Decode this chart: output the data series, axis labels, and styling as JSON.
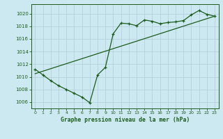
{
  "title": "Graphe pression niveau de la mer (hPa)",
  "background_color": "#cce8f0",
  "grid_color": "#b0ccd8",
  "line_color": "#1a5c1a",
  "xlim": [
    -0.5,
    23.5
  ],
  "ylim": [
    1005.0,
    1021.5
  ],
  "yticks": [
    1006,
    1008,
    1010,
    1012,
    1014,
    1016,
    1018,
    1020
  ],
  "xticks": [
    0,
    1,
    2,
    3,
    4,
    5,
    6,
    7,
    8,
    9,
    10,
    11,
    12,
    13,
    14,
    15,
    16,
    17,
    18,
    19,
    20,
    21,
    22,
    23
  ],
  "line1_x": [
    0,
    1,
    2,
    3,
    4,
    5,
    6,
    7,
    8,
    9,
    10,
    11,
    12,
    13,
    14,
    15,
    16,
    17,
    18,
    19,
    20,
    21,
    22,
    23
  ],
  "line1_y": [
    1011.2,
    1010.3,
    1009.4,
    1008.6,
    1008.0,
    1007.4,
    1006.8,
    1005.9,
    1010.3,
    1011.5,
    1016.8,
    1018.5,
    1018.4,
    1018.1,
    1019.0,
    1018.8,
    1018.4,
    1018.6,
    1018.7,
    1018.9,
    1019.8,
    1020.5,
    1019.9,
    1019.6
  ],
  "line2_x": [
    0,
    23
  ],
  "line2_y": [
    1010.5,
    1019.6
  ]
}
